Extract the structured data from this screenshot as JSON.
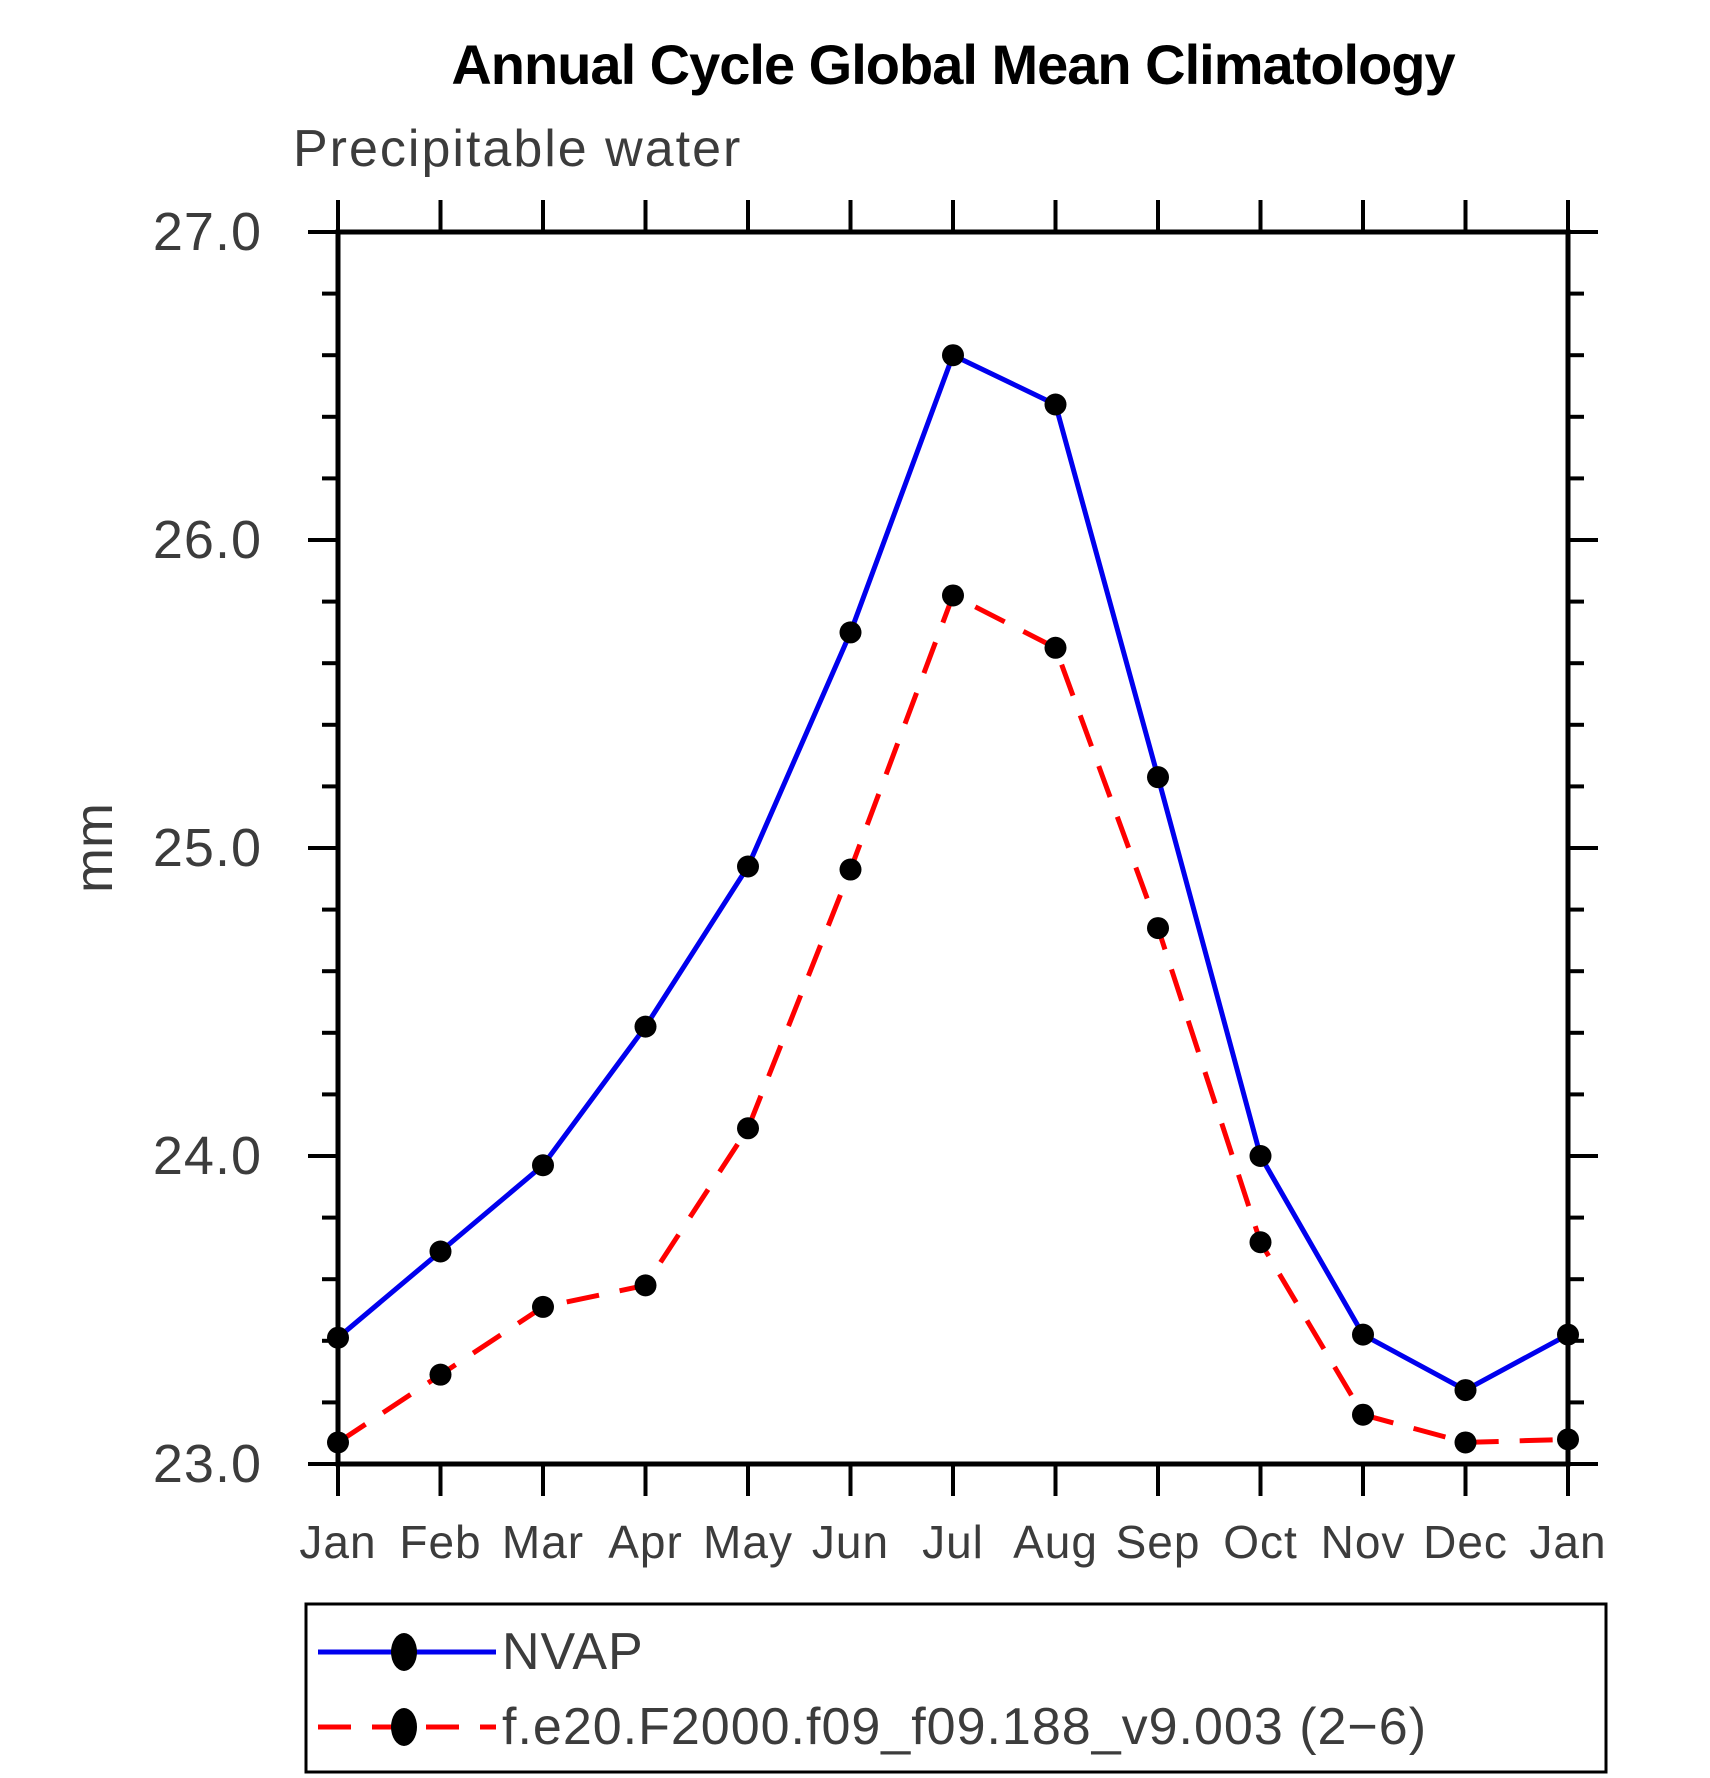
{
  "chart_data": {
    "type": "line",
    "title": "Annual Cycle Global Mean Climatology",
    "subtitle": "Precipitable water",
    "ylabel": "mm",
    "categories": [
      "Jan",
      "Feb",
      "Mar",
      "Apr",
      "May",
      "Jun",
      "Jul",
      "Aug",
      "Sep",
      "Oct",
      "Nov",
      "Dec",
      "Jan"
    ],
    "series": [
      {
        "name": "NVAP",
        "color": "#0000ee",
        "line_style": "solid",
        "marker": "filled-circle",
        "marker_color": "#000000",
        "values": [
          23.41,
          23.69,
          23.97,
          24.42,
          24.94,
          25.7,
          26.6,
          26.44,
          25.23,
          24.0,
          23.42,
          23.24,
          23.42
        ]
      },
      {
        "name": "f.e20.F2000.f09_f09.188_v9.003 (2−6)",
        "color": "#ff0000",
        "line_style": "dashed",
        "marker": "filled-circle",
        "marker_color": "#000000",
        "values": [
          23.07,
          23.29,
          23.51,
          23.58,
          24.09,
          24.93,
          25.82,
          25.65,
          24.74,
          23.72,
          23.16,
          23.07,
          23.08
        ]
      }
    ],
    "ylim": [
      23.0,
      27.0
    ],
    "y_major_step": 1.0,
    "y_minor_step": 0.2,
    "ytick_labels": [
      "23.0",
      "24.0",
      "25.0",
      "26.0",
      "27.0"
    ],
    "xlabel": "",
    "grid": false,
    "legend_position": "bottom"
  }
}
